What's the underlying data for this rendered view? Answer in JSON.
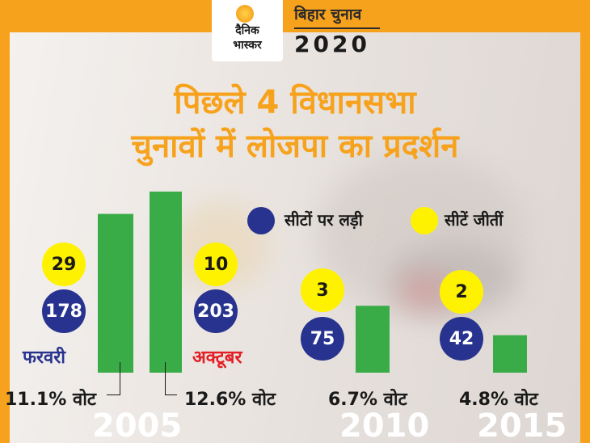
{
  "header": {
    "logo_line1": "दैनिक",
    "logo_line2": "भास्कर",
    "brand_line1": "बिहार चुनाव",
    "brand_line2": "2020"
  },
  "headline": {
    "line1": "पिछले 4 विधानसभा",
    "line2": "चुनावों में लोजपा का प्रदर्शन"
  },
  "chart_data": {
    "type": "bar",
    "legend": {
      "contested": "सीटों पर लड़ी",
      "won": "सीटें जीतीं",
      "placement": "top-right"
    },
    "colors": {
      "bar": "#3aac47",
      "contested": "#27338f",
      "won": "#fff200",
      "accent": "#f7a21c",
      "month_feb": "#27338f",
      "month_oct": "#e31e24"
    },
    "elections": [
      {
        "year": "2005",
        "month": "फरवरी",
        "contested": 178,
        "won": 29,
        "vote_share": 11.1,
        "vote_label": "11.1% वोट"
      },
      {
        "year": "2005",
        "month": "अक्टूबर",
        "contested": 203,
        "won": 10,
        "vote_share": 12.6,
        "vote_label": "12.6% वोट"
      },
      {
        "year": "2010",
        "month": "",
        "contested": 75,
        "won": 3,
        "vote_share": 6.7,
        "vote_label": "6.7% वोट"
      },
      {
        "year": "2015",
        "month": "",
        "contested": 42,
        "won": 2,
        "vote_share": 4.8,
        "vote_label": "4.8% वोट"
      }
    ],
    "years": [
      "2005",
      "2010",
      "2015"
    ],
    "grid": false
  }
}
